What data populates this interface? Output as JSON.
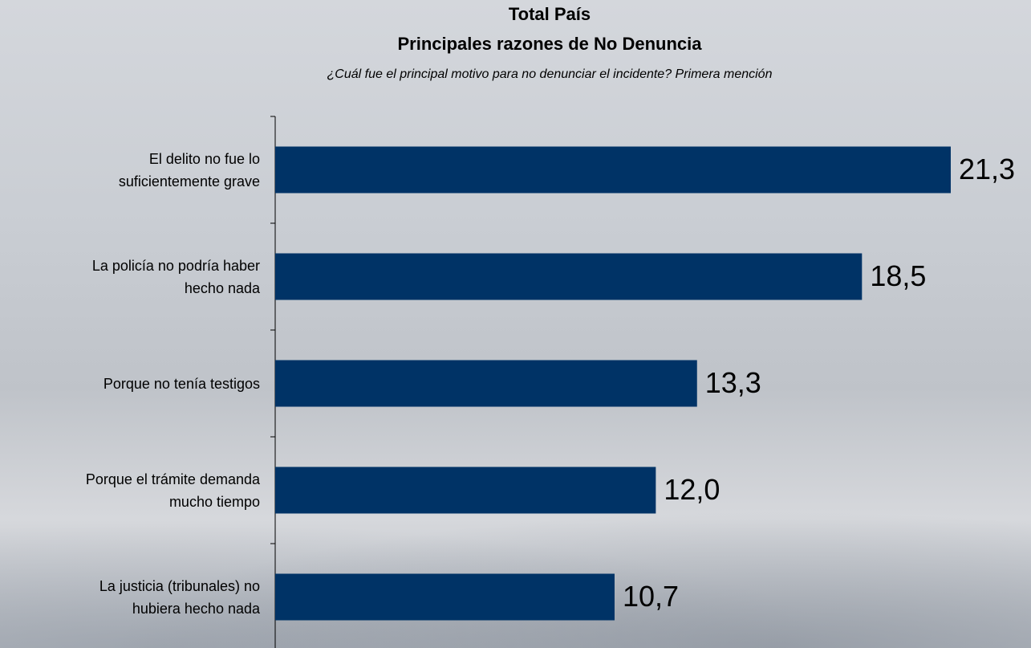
{
  "chart_data": {
    "type": "bar",
    "orientation": "horizontal",
    "title": "Total País",
    "subtitle": "Principales razones de No Denuncia",
    "question": "¿Cuál fue el principal motivo para no denunciar el incidente? Primera mención",
    "categories": [
      "El delito no fue lo\nsuficientemente grave",
      "La policía no podría haber\nhecho nada",
      "Porque no tenía testigos",
      "Porque el trámite demanda\nmucho tiempo",
      "La justicia (tribunales) no\nhubiera hecho nada"
    ],
    "values": [
      21.3,
      18.5,
      13.3,
      12.0,
      10.7
    ],
    "value_labels": [
      "21,3",
      "18,5",
      "13,3",
      "12,0",
      "10,7"
    ],
    "color": "#003366"
  }
}
